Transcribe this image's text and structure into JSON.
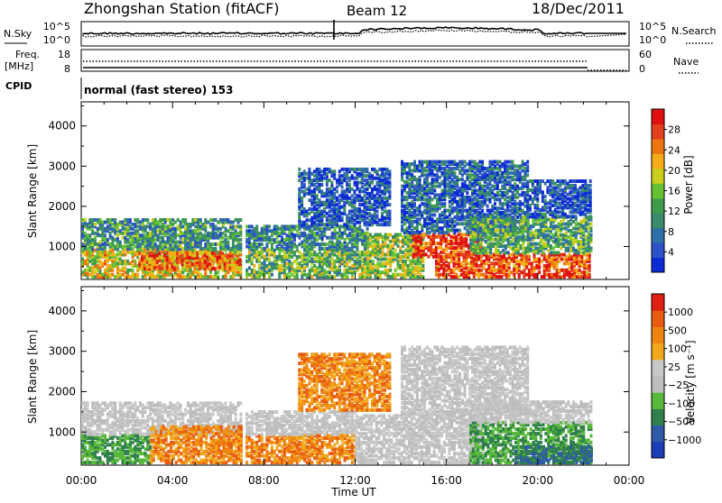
{
  "header": {
    "station": "Zhongshan Station (fitACF)",
    "beam": "Beam 12",
    "date": "18/Dec/2011"
  },
  "noise_panel": {
    "left_label": "N.Sky",
    "left_ticks": [
      "10^5",
      "10^0"
    ],
    "right_ticks": [
      "10^5",
      "10^0"
    ],
    "right_label": "N.Search"
  },
  "freq_panel": {
    "left_label_line1": "Freq.",
    "left_label_line2": "[MHz]",
    "left_ticks": [
      "18",
      "8"
    ],
    "right_ticks": [
      "60",
      "0"
    ],
    "right_label": "Nave"
  },
  "cpid": {
    "label": "CPID",
    "value": "normal (fast stereo) 153"
  },
  "chart_data": [
    {
      "type": "heatmap",
      "title": "Power",
      "xlabel": "Time UT",
      "ylabel": "Slant Range [km]",
      "xlim": [
        "00:00",
        "24:00"
      ],
      "ylim": [
        180,
        4600
      ],
      "x_ticks": [
        "00:00",
        "04:00",
        "08:00",
        "12:00",
        "16:00",
        "20:00",
        "00:00"
      ],
      "y_ticks": [
        1000,
        2000,
        3000,
        4000
      ],
      "colorbar": {
        "label": "Power [dB]",
        "range": [
          0,
          32
        ],
        "ticks": [
          "4",
          "8",
          "12",
          "16",
          "20",
          "24",
          "28"
        ],
        "colors": [
          "#0c2bd6",
          "#2c50c8",
          "#2f6fa8",
          "#3c8a6c",
          "#3f9c4c",
          "#66c233",
          "#c9cf1c",
          "#f4ad16",
          "#ee7410",
          "#e2401c",
          "#e01010"
        ]
      },
      "regions": [
        {
          "t0": 0.0,
          "t1": 7.0,
          "r0": 200,
          "r1": 900,
          "level": 0.6
        },
        {
          "t0": 0.0,
          "t1": 7.0,
          "r0": 900,
          "r1": 1650,
          "level": 0.35
        },
        {
          "t0": 2.5,
          "t1": 7.0,
          "r0": 400,
          "r1": 800,
          "level": 0.8
        },
        {
          "t0": 7.2,
          "t1": 12.5,
          "r0": 200,
          "r1": 900,
          "level": 0.45
        },
        {
          "t0": 7.2,
          "t1": 12.5,
          "r0": 900,
          "r1": 1500,
          "level": 0.3
        },
        {
          "t0": 9.5,
          "t1": 13.5,
          "r0": 1500,
          "r1": 2900,
          "level": 0.15
        },
        {
          "t0": 12.5,
          "t1": 15.0,
          "r0": 200,
          "r1": 1300,
          "level": 0.5
        },
        {
          "t0": 14.5,
          "t1": 17.5,
          "r0": 700,
          "r1": 1300,
          "level": 0.9
        },
        {
          "t0": 14.0,
          "t1": 19.5,
          "r0": 1300,
          "r1": 3100,
          "level": 0.2
        },
        {
          "t0": 15.5,
          "t1": 22.3,
          "r0": 200,
          "r1": 800,
          "level": 0.85
        },
        {
          "t0": 17.0,
          "t1": 22.3,
          "r0": 800,
          "r1": 1700,
          "level": 0.4
        },
        {
          "t0": 19.5,
          "t1": 22.3,
          "r0": 1700,
          "r1": 2600,
          "level": 0.15
        }
      ]
    },
    {
      "type": "heatmap",
      "title": "Velocity",
      "xlabel": "Time UT",
      "ylabel": "Slant Range [km]",
      "xlim": [
        "00:00",
        "24:00"
      ],
      "ylim": [
        180,
        4600
      ],
      "x_ticks": [
        "00:00",
        "04:00",
        "08:00",
        "12:00",
        "16:00",
        "20:00",
        "00:00"
      ],
      "y_ticks": [
        1000,
        2000,
        3000,
        4000
      ],
      "colorbar": {
        "label": "Velocity [m s⁻¹]",
        "range": [
          -1000,
          1000
        ],
        "ticks": [
          "1000",
          "500",
          "100",
          "25",
          "−25",
          "−100",
          "−500",
          "−1000"
        ],
        "colors": [
          "#1c3cb8",
          "#2e5aa8",
          "#2f7f4c",
          "#58b83a",
          "#bdbdbd",
          "#c8c8c8",
          "#f2a81c",
          "#ee8412",
          "#e85c12",
          "#e02010"
        ]
      },
      "regions": [
        {
          "t0": 0.0,
          "t1": 3.0,
          "r0": 200,
          "r1": 900,
          "class": "green"
        },
        {
          "t0": 0.0,
          "t1": 7.0,
          "r0": 900,
          "r1": 1700,
          "class": "gray"
        },
        {
          "t0": 3.0,
          "t1": 7.0,
          "r0": 200,
          "r1": 1100,
          "class": "orange"
        },
        {
          "t0": 7.2,
          "t1": 12.0,
          "r0": 200,
          "r1": 900,
          "class": "orange"
        },
        {
          "t0": 7.2,
          "t1": 12.0,
          "r0": 900,
          "r1": 1500,
          "class": "gray"
        },
        {
          "t0": 9.5,
          "t1": 13.5,
          "r0": 1500,
          "r1": 2900,
          "class": "orange"
        },
        {
          "t0": 12.0,
          "t1": 17.5,
          "r0": 200,
          "r1": 1400,
          "class": "gray"
        },
        {
          "t0": 14.0,
          "t1": 19.5,
          "r0": 1400,
          "r1": 3100,
          "class": "gray"
        },
        {
          "t0": 17.0,
          "t1": 22.3,
          "r0": 200,
          "r1": 1200,
          "class": "green"
        },
        {
          "t0": 19.0,
          "t1": 22.3,
          "r0": 200,
          "r1": 600,
          "class": "darkgreen"
        },
        {
          "t0": 17.0,
          "t1": 22.3,
          "r0": 1200,
          "r1": 1700,
          "class": "gray"
        }
      ]
    }
  ]
}
